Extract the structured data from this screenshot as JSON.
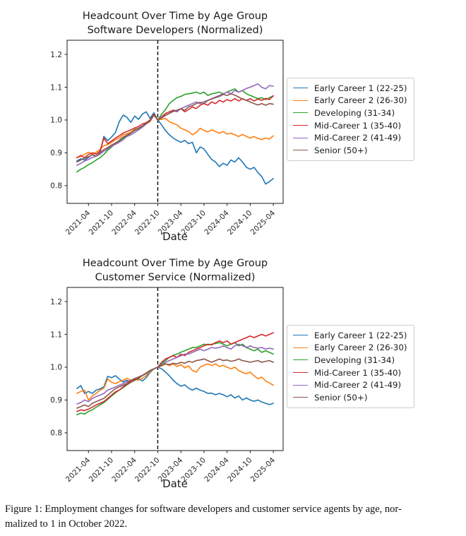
{
  "caption": {
    "line1": "Figure 1:  Employment changes for software developers and customer service agents by age, nor-",
    "line2": "malized to 1 in October 2022."
  },
  "chart_data": [
    {
      "type": "line",
      "title_line1": "Headcount Over Time by Age Group",
      "title_line2": "Software Developers (Normalized)",
      "xlabel": "Date",
      "ylabel": "",
      "grid": false,
      "legend_position": "right of plot",
      "ylim": [
        0.746,
        1.243
      ],
      "y_ticks": [
        0.8,
        0.9,
        1.0,
        1.1,
        1.2
      ],
      "x_tick_labels": [
        "2021-04",
        "2021-10",
        "2022-04",
        "2022-10",
        "2023-04",
        "2023-10",
        "2024-04",
        "2024-10",
        "2025-04"
      ],
      "x_tick_month_indices": [
        3,
        9,
        15,
        21,
        27,
        33,
        39,
        45,
        51
      ],
      "vline": {
        "label": "2022-10",
        "month_index": 21,
        "style": "dashed",
        "color": "#000000"
      },
      "x_months": [
        "2021-01",
        "2021-02",
        "2021-03",
        "2021-04",
        "2021-05",
        "2021-06",
        "2021-07",
        "2021-08",
        "2021-09",
        "2021-10",
        "2021-11",
        "2021-12",
        "2022-01",
        "2022-02",
        "2022-03",
        "2022-04",
        "2022-05",
        "2022-06",
        "2022-07",
        "2022-08",
        "2022-09",
        "2022-10",
        "2022-11",
        "2022-12",
        "2023-01",
        "2023-02",
        "2023-03",
        "2023-04",
        "2023-05",
        "2023-06",
        "2023-07",
        "2023-08",
        "2023-09",
        "2023-10",
        "2023-11",
        "2023-12",
        "2024-01",
        "2024-02",
        "2024-03",
        "2024-04",
        "2024-05",
        "2024-06",
        "2024-07",
        "2024-08",
        "2024-09",
        "2024-10",
        "2024-11",
        "2024-12",
        "2025-01",
        "2025-02",
        "2025-03",
        "2025-04"
      ],
      "series": [
        {
          "name": "Early Career 1 (22-25)",
          "color": "#1f77b4",
          "values": [
            0.875,
            0.882,
            0.878,
            0.886,
            0.895,
            0.89,
            0.9,
            0.95,
            0.937,
            0.948,
            0.962,
            0.995,
            1.015,
            1.008,
            0.993,
            1.012,
            1.002,
            1.018,
            1.025,
            1.005,
            1.022,
            1.0,
            0.985,
            0.968,
            0.955,
            0.945,
            0.938,
            0.932,
            0.938,
            0.928,
            0.932,
            0.9,
            0.918,
            0.912,
            0.895,
            0.88,
            0.872,
            0.858,
            0.868,
            0.862,
            0.878,
            0.872,
            0.885,
            0.872,
            0.856,
            0.85,
            0.856,
            0.84,
            0.828,
            0.805,
            0.812,
            0.822
          ]
        },
        {
          "name": "Early Career 2 (26-30)",
          "color": "#ff7f0e",
          "values": [
            0.885,
            0.89,
            0.895,
            0.902,
            0.896,
            0.902,
            0.91,
            0.922,
            0.925,
            0.932,
            0.94,
            0.945,
            0.955,
            0.958,
            0.963,
            0.972,
            0.975,
            0.98,
            0.988,
            0.995,
            1.015,
            1.0,
            1.002,
            1.005,
            0.995,
            0.99,
            0.985,
            0.975,
            0.97,
            0.965,
            0.955,
            0.962,
            0.975,
            0.968,
            0.964,
            0.97,
            0.965,
            0.96,
            0.965,
            0.957,
            0.96,
            0.955,
            0.95,
            0.956,
            0.95,
            0.945,
            0.95,
            0.944,
            0.94,
            0.945,
            0.942,
            0.952
          ]
        },
        {
          "name": "Developing (31-34)",
          "color": "#2ca02c",
          "values": [
            0.842,
            0.85,
            0.856,
            0.864,
            0.87,
            0.878,
            0.885,
            0.895,
            0.908,
            0.918,
            0.928,
            0.935,
            0.945,
            0.952,
            0.96,
            0.97,
            0.975,
            0.982,
            0.99,
            0.998,
            1.015,
            1.0,
            1.018,
            1.032,
            1.05,
            1.06,
            1.068,
            1.072,
            1.078,
            1.08,
            1.082,
            1.085,
            1.08,
            1.085,
            1.075,
            1.08,
            1.082,
            1.085,
            1.08,
            1.085,
            1.09,
            1.095,
            1.085,
            1.09,
            1.08,
            1.075,
            1.07,
            1.065,
            1.068,
            1.062,
            1.068,
            1.073
          ]
        },
        {
          "name": "Mid-Career 1 (35-40)",
          "color": "#d62728",
          "values": [
            0.885,
            0.892,
            0.885,
            0.895,
            0.9,
            0.896,
            0.905,
            0.945,
            0.928,
            0.936,
            0.945,
            0.952,
            0.96,
            0.965,
            0.97,
            0.976,
            0.98,
            0.988,
            0.992,
            1.0,
            1.018,
            1.0,
            1.01,
            1.02,
            1.025,
            1.03,
            1.028,
            1.035,
            1.025,
            1.032,
            1.04,
            1.035,
            1.045,
            1.05,
            1.045,
            1.055,
            1.05,
            1.06,
            1.055,
            1.062,
            1.058,
            1.065,
            1.058,
            1.065,
            1.06,
            1.065,
            1.058,
            1.064,
            1.06,
            1.066,
            1.062,
            1.074
          ]
        },
        {
          "name": "Mid-Career 2 (41-49)",
          "color": "#9467bd",
          "values": [
            0.862,
            0.868,
            0.875,
            0.88,
            0.886,
            0.89,
            0.896,
            0.905,
            0.912,
            0.92,
            0.926,
            0.932,
            0.94,
            0.95,
            0.955,
            0.962,
            0.97,
            0.978,
            0.988,
            0.998,
            1.014,
            1.0,
            1.008,
            1.015,
            1.02,
            1.028,
            1.025,
            1.035,
            1.04,
            1.045,
            1.05,
            1.055,
            1.05,
            1.056,
            1.06,
            1.065,
            1.07,
            1.075,
            1.08,
            1.085,
            1.08,
            1.09,
            1.085,
            1.09,
            1.096,
            1.1,
            1.105,
            1.11,
            1.1,
            1.095,
            1.105,
            1.103
          ]
        },
        {
          "name": "Senior (50+)",
          "color": "#8c564b",
          "values": [
            0.872,
            0.878,
            0.884,
            0.888,
            0.894,
            0.89,
            0.9,
            0.91,
            0.916,
            0.924,
            0.93,
            0.938,
            0.948,
            0.954,
            0.96,
            0.968,
            0.974,
            0.982,
            0.99,
            0.998,
            1.016,
            1.0,
            1.006,
            1.014,
            1.02,
            1.026,
            1.03,
            1.034,
            1.03,
            1.04,
            1.044,
            1.05,
            1.054,
            1.05,
            1.06,
            1.064,
            1.068,
            1.072,
            1.078,
            1.075,
            1.08,
            1.076,
            1.07,
            1.064,
            1.06,
            1.055,
            1.05,
            1.046,
            1.05,
            1.045,
            1.05,
            1.048
          ]
        }
      ]
    },
    {
      "type": "line",
      "title_line1": "Headcount Over Time by Age Group",
      "title_line2": "Customer Service (Normalized)",
      "xlabel": "Date",
      "ylabel": "",
      "grid": false,
      "legend_position": "right of plot",
      "ylim": [
        0.746,
        1.243
      ],
      "y_ticks": [
        0.8,
        0.9,
        1.0,
        1.1,
        1.2
      ],
      "x_tick_labels": [
        "2021-04",
        "2021-10",
        "2022-04",
        "2022-10",
        "2023-04",
        "2023-10",
        "2024-04",
        "2024-10",
        "2025-04"
      ],
      "x_tick_month_indices": [
        3,
        9,
        15,
        21,
        27,
        33,
        39,
        45,
        51
      ],
      "vline": {
        "label": "2022-10",
        "month_index": 21,
        "style": "dashed",
        "color": "#000000"
      },
      "x_months": [
        "2021-01",
        "2021-02",
        "2021-03",
        "2021-04",
        "2021-05",
        "2021-06",
        "2021-07",
        "2021-08",
        "2021-09",
        "2021-10",
        "2021-11",
        "2021-12",
        "2022-01",
        "2022-02",
        "2022-03",
        "2022-04",
        "2022-05",
        "2022-06",
        "2022-07",
        "2022-08",
        "2022-09",
        "2022-10",
        "2022-11",
        "2022-12",
        "2023-01",
        "2023-02",
        "2023-03",
        "2023-04",
        "2023-05",
        "2023-06",
        "2023-07",
        "2023-08",
        "2023-09",
        "2023-10",
        "2023-11",
        "2023-12",
        "2024-01",
        "2024-02",
        "2024-03",
        "2024-04",
        "2024-05",
        "2024-06",
        "2024-07",
        "2024-08",
        "2024-09",
        "2024-10",
        "2024-11",
        "2024-12",
        "2025-01",
        "2025-02",
        "2025-03",
        "2025-04"
      ],
      "series": [
        {
          "name": "Early Career 1 (22-25)",
          "color": "#1f77b4",
          "values": [
            0.935,
            0.944,
            0.92,
            0.926,
            0.92,
            0.93,
            0.934,
            0.94,
            0.972,
            0.968,
            0.974,
            0.964,
            0.955,
            0.96,
            0.954,
            0.96,
            0.965,
            0.958,
            0.968,
            0.984,
            0.995,
            1.0,
            0.995,
            0.985,
            0.974,
            0.96,
            0.95,
            0.942,
            0.946,
            0.936,
            0.93,
            0.936,
            0.93,
            0.926,
            0.92,
            0.921,
            0.916,
            0.92,
            0.916,
            0.91,
            0.916,
            0.906,
            0.912,
            0.9,
            0.906,
            0.9,
            0.896,
            0.9,
            0.894,
            0.89,
            0.886,
            0.89
          ]
        },
        {
          "name": "Early Career 2 (26-30)",
          "color": "#ff7f0e",
          "values": [
            0.92,
            0.926,
            0.93,
            0.9,
            0.912,
            0.92,
            0.93,
            0.936,
            0.964,
            0.954,
            0.95,
            0.956,
            0.96,
            0.966,
            0.96,
            0.965,
            0.96,
            0.966,
            0.974,
            0.986,
            0.995,
            1.0,
            1.004,
            1.01,
            1.005,
            1.01,
            1.002,
            1.008,
            0.998,
            1.004,
            0.99,
            0.985,
            1.0,
            1.006,
            1.01,
            1.005,
            1.01,
            1.002,
            1.006,
            1.0,
            0.995,
            1.0,
            0.99,
            0.984,
            0.98,
            0.985,
            0.974,
            0.965,
            0.97,
            0.958,
            0.952,
            0.945
          ]
        },
        {
          "name": "Developing (31-34)",
          "color": "#2ca02c",
          "values": [
            0.855,
            0.86,
            0.857,
            0.865,
            0.87,
            0.878,
            0.885,
            0.892,
            0.902,
            0.912,
            0.922,
            0.93,
            0.938,
            0.946,
            0.954,
            0.96,
            0.966,
            0.974,
            0.98,
            0.988,
            0.995,
            1.0,
            1.01,
            1.02,
            1.03,
            1.036,
            1.04,
            1.046,
            1.05,
            1.055,
            1.06,
            1.06,
            1.065,
            1.07,
            1.068,
            1.07,
            1.072,
            1.075,
            1.07,
            1.065,
            1.07,
            1.075,
            1.065,
            1.07,
            1.06,
            1.055,
            1.05,
            1.055,
            1.045,
            1.05,
            1.045,
            1.04
          ]
        },
        {
          "name": "Mid-Career 1 (35-40)",
          "color": "#d62728",
          "values": [
            0.865,
            0.87,
            0.868,
            0.872,
            0.878,
            0.885,
            0.89,
            0.895,
            0.905,
            0.915,
            0.925,
            0.93,
            0.94,
            0.948,
            0.955,
            0.962,
            0.968,
            0.975,
            0.982,
            0.99,
            0.995,
            1.0,
            1.015,
            1.025,
            1.03,
            1.035,
            1.03,
            1.04,
            1.035,
            1.045,
            1.05,
            1.055,
            1.06,
            1.065,
            1.07,
            1.068,
            1.075,
            1.08,
            1.075,
            1.08,
            1.07,
            1.075,
            1.08,
            1.085,
            1.09,
            1.095,
            1.09,
            1.095,
            1.1,
            1.095,
            1.1,
            1.105
          ]
        },
        {
          "name": "Mid-Career 2 (41-49)",
          "color": "#9467bd",
          "values": [
            0.888,
            0.892,
            0.9,
            0.895,
            0.905,
            0.91,
            0.915,
            0.92,
            0.93,
            0.935,
            0.94,
            0.945,
            0.95,
            0.955,
            0.96,
            0.965,
            0.97,
            0.975,
            0.98,
            0.99,
            0.995,
            1.0,
            1.005,
            1.015,
            1.02,
            1.025,
            1.03,
            1.035,
            1.04,
            1.04,
            1.045,
            1.05,
            1.055,
            1.05,
            1.055,
            1.06,
            1.058,
            1.06,
            1.065,
            1.06,
            1.055,
            1.065,
            1.07,
            1.065,
            1.06,
            1.065,
            1.06,
            1.058,
            1.06,
            1.055,
            1.058,
            1.055
          ]
        },
        {
          "name": "Senior (50+)",
          "color": "#8c564b",
          "values": [
            0.875,
            0.88,
            0.885,
            0.88,
            0.89,
            0.895,
            0.9,
            0.905,
            0.915,
            0.925,
            0.935,
            0.94,
            0.945,
            0.95,
            0.96,
            0.965,
            0.97,
            0.975,
            0.982,
            0.99,
            0.995,
            1.0,
            1.005,
            1.01,
            1.008,
            1.012,
            1.01,
            1.015,
            1.012,
            1.018,
            1.015,
            1.02,
            1.022,
            1.025,
            1.02,
            1.015,
            1.02,
            1.025,
            1.02,
            1.022,
            1.018,
            1.02,
            1.025,
            1.02,
            1.018,
            1.015,
            1.018,
            1.02,
            1.015,
            1.018,
            1.02,
            1.015
          ]
        }
      ]
    }
  ]
}
